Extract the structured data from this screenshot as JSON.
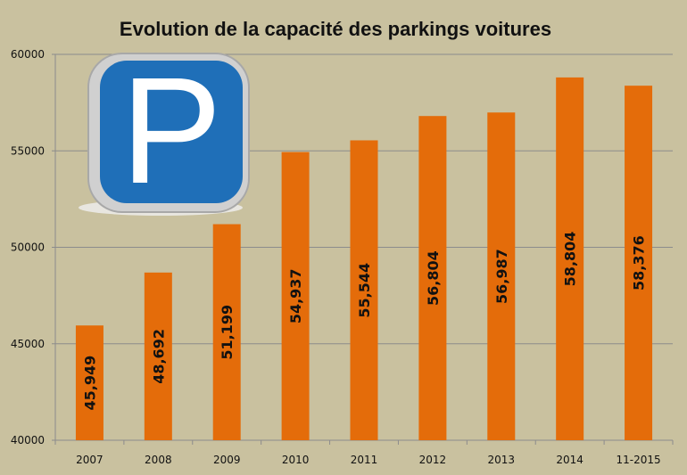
{
  "chart_data": {
    "type": "bar",
    "title": "Evolution de la capacité des parkings voitures",
    "categories": [
      "2007",
      "2008",
      "2009",
      "2010",
      "2011",
      "2012",
      "2013",
      "2014",
      "11-2015"
    ],
    "values": [
      45949,
      48692,
      51199,
      54937,
      55544,
      56804,
      56987,
      58804,
      58376
    ],
    "data_labels": [
      "45,949",
      "48,692",
      "51,199",
      "54,937",
      "55,544",
      "56,804",
      "56,987",
      "58,804",
      "58,376"
    ],
    "xlabel": "",
    "ylabel": "",
    "ylim": [
      40000,
      60000
    ],
    "yticks": [
      "40000",
      "45000",
      "50000",
      "55000",
      "60000"
    ],
    "grid": true,
    "legend": "none",
    "bar_color": "#e46c0a"
  },
  "decoration": {
    "icon": "parking-sign-icon",
    "letter": "P"
  }
}
